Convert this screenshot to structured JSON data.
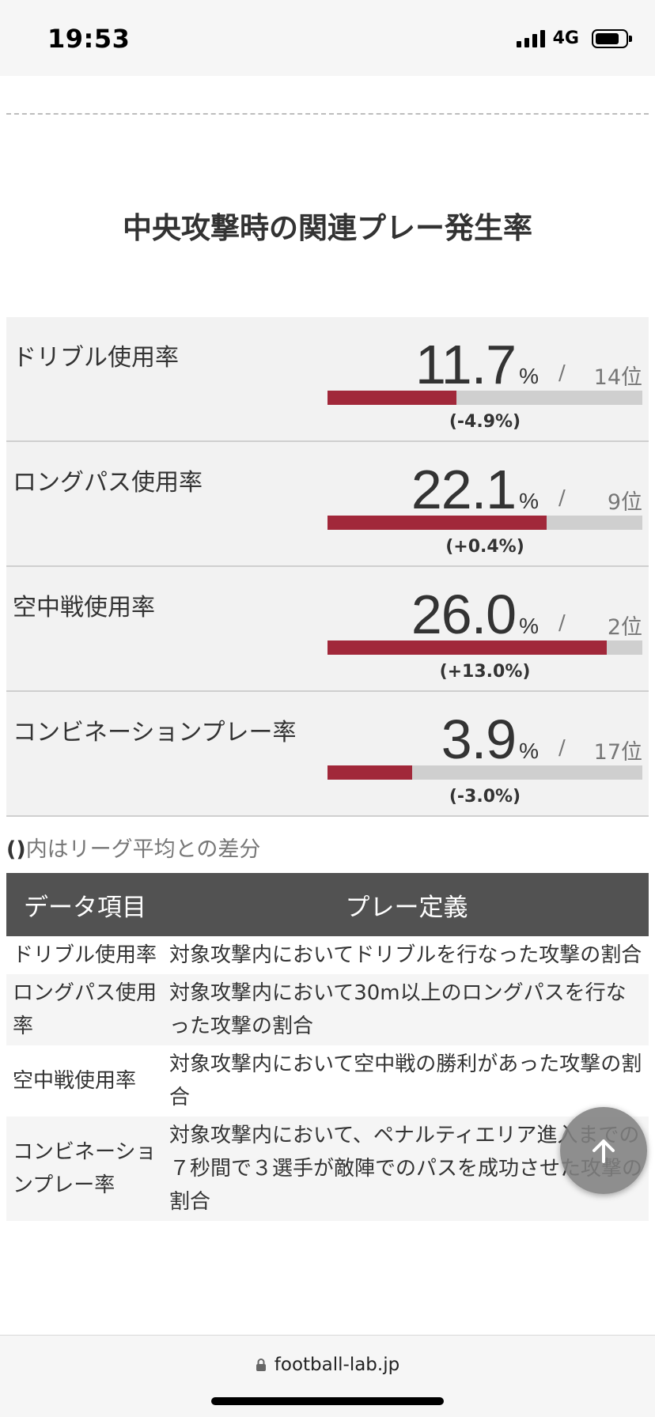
{
  "status": {
    "time": "19:53",
    "network": "4G"
  },
  "section_title": "中央攻撃時の関連プレー発生率",
  "stats": [
    {
      "label": "ドリブル使用率",
      "value": "11.7",
      "unit": "%",
      "slash": "/",
      "rank": "14位",
      "bar_fraction": 0.41,
      "diff": "(-4.9%)"
    },
    {
      "label": "ロングパス使用率",
      "value": "22.1",
      "unit": "%",
      "slash": "/",
      "rank": "9位",
      "bar_fraction": 0.695,
      "diff": "(+0.4%)"
    },
    {
      "label": "空中戦使用率",
      "value": "26.0",
      "unit": "%",
      "slash": "/",
      "rank": "2位",
      "bar_fraction": 0.888,
      "diff": "(+13.0%)"
    },
    {
      "label": "コンビネーションプレー率",
      "value": "3.9",
      "unit": "%",
      "slash": "/",
      "rank": "17位",
      "bar_fraction": 0.27,
      "diff": "(-3.0%)"
    }
  ],
  "note": {
    "paren": "()",
    "text": "内はリーグ平均との差分"
  },
  "definitions": {
    "headers": [
      "データ項目",
      "プレー定義"
    ],
    "rows": [
      {
        "item": "ドリブル使用率",
        "definition": "対象攻撃内においてドリブルを行なった攻撃の割合"
      },
      {
        "item": "ロングパス使用率",
        "definition": "対象攻撃内において30m以上のロングパスを行なった攻撃の割合"
      },
      {
        "item": "空中戦使用率",
        "definition": "対象攻撃内において空中戦の勝利があった攻撃の割合"
      },
      {
        "item": "コンビネーションプレー率",
        "definition": "対象攻撃内において、ペナルティエリア進入までの７秒間で３選手が敵陣でのパスを成功させた攻撃の割合"
      }
    ]
  },
  "url": "football-lab.jp",
  "colors": {
    "bar_fill": "#a1283a",
    "bar_track": "#cfcfcf",
    "table_header": "#525252"
  },
  "icons": {
    "scroll_top": "arrow-up-icon",
    "lock": "lock-icon"
  }
}
